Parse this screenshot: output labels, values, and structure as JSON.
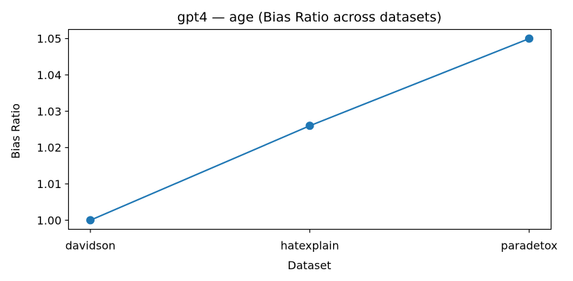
{
  "chart_data": {
    "type": "line",
    "title": "gpt4 — age (Bias Ratio across datasets)",
    "xlabel": "Dataset",
    "ylabel": "Bias Ratio",
    "categories": [
      "davidson",
      "hatexplain",
      "paradetox"
    ],
    "series": [
      {
        "values": [
          1.0,
          1.026,
          1.05
        ],
        "color": "#1f77b4",
        "marker": "circle"
      }
    ],
    "ylim": [
      0.9975,
      1.0525
    ],
    "yticks": [
      1.0,
      1.01,
      1.02,
      1.03,
      1.04,
      1.05
    ],
    "ytick_labels": [
      "1.00",
      "1.01",
      "1.02",
      "1.03",
      "1.04",
      "1.05"
    ],
    "grid": false,
    "legend": false
  }
}
